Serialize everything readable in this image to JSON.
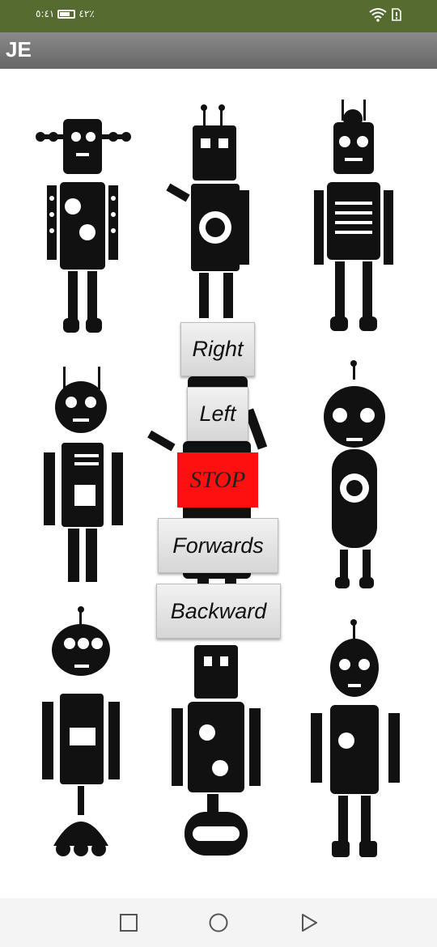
{
  "status_bar": {
    "time": "٥:٤١",
    "battery_percent": "٤٢٪",
    "icons": [
      "battery-icon",
      "wifi-icon",
      "sim-card-icon"
    ],
    "background": "#556b2f"
  },
  "app_bar": {
    "title": "JE"
  },
  "controls": {
    "right_label": "Right",
    "left_label": "Left",
    "stop_label": "STOP",
    "forwards_label": "Forwards",
    "backward_label": "Backward",
    "stop_color": "#ff1010"
  },
  "background_image": "robots-grid",
  "nav_bar": {
    "icons": [
      "recent-apps-icon",
      "home-icon",
      "back-icon"
    ]
  }
}
